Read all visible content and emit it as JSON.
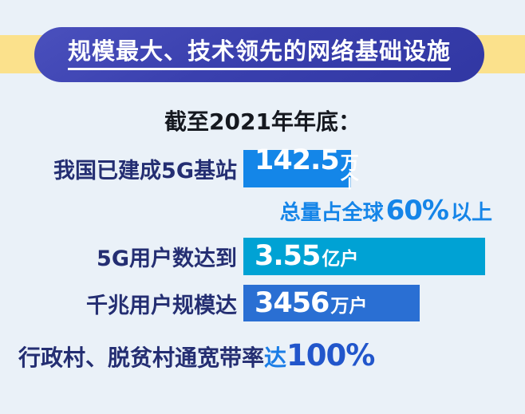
{
  "header": {
    "title": "规模最大、技术领先的网络基础设施"
  },
  "subtitle": "截至2021年年底：",
  "stats": [
    {
      "label": "我国已建成5G基站",
      "value": "142.5",
      "unit": "万个"
    },
    {
      "label": "5G用户数达到",
      "value": "3.55",
      "unit": "亿户"
    },
    {
      "label": "千兆用户规模达",
      "value": "3456",
      "unit": "万户"
    }
  ],
  "note": {
    "prefix": "总量占全球",
    "value": "60%",
    "suffix": "以上"
  },
  "footer": {
    "prefix": "行政村、脱贫村通宽带率",
    "verb": "达",
    "value": "100%"
  },
  "colors": {
    "background": "#eaf1f8",
    "banner_yellow": "#fbe18c",
    "banner_blue": "#3a40ae",
    "box_bright_blue": "#1486e8",
    "box_cyan": "#00a2d4",
    "box_medium_blue": "#2a6fd3",
    "label_navy": "#242e72",
    "accent_blue": "#1585e8",
    "footer_value_blue": "#2256cb"
  },
  "chart_data": {
    "type": "table",
    "title": "规模最大、技术领先的网络基础设施",
    "subtitle": "截至2021年年底",
    "rows": [
      {
        "metric": "我国已建成5G基站",
        "value": 142.5,
        "unit": "万个",
        "note": "总量占全球60%以上"
      },
      {
        "metric": "5G用户数达到",
        "value": 3.55,
        "unit": "亿户"
      },
      {
        "metric": "千兆用户规模达",
        "value": 3456,
        "unit": "万户"
      },
      {
        "metric": "行政村、脱贫村通宽带率达",
        "value": 100,
        "unit": "%"
      }
    ]
  }
}
